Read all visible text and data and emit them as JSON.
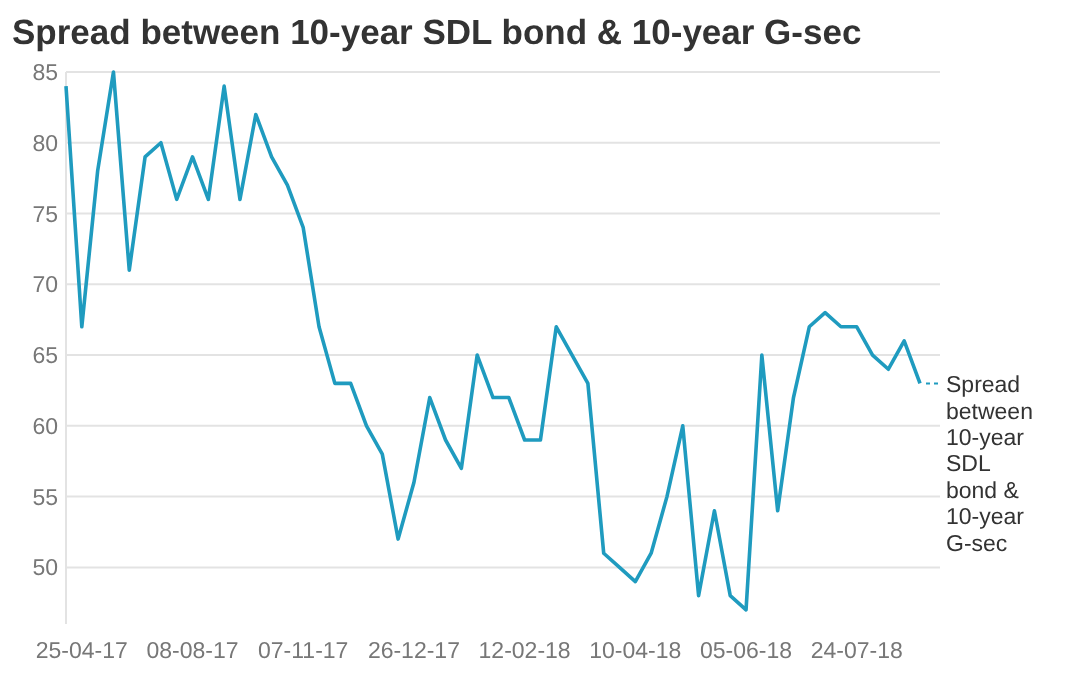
{
  "chart_data": {
    "type": "line",
    "title": "Spread between 10-year SDL bond & 10-year G-sec",
    "categories": [
      null,
      "25-04-17",
      null,
      null,
      null,
      null,
      null,
      null,
      "08-08-17",
      null,
      null,
      null,
      null,
      null,
      null,
      "07-11-17",
      null,
      null,
      null,
      null,
      null,
      null,
      "26-12-17",
      null,
      null,
      null,
      null,
      null,
      null,
      "12-02-18",
      null,
      null,
      null,
      null,
      null,
      null,
      "10-04-18",
      null,
      null,
      null,
      null,
      null,
      null,
      "05-06-18",
      null,
      null,
      null,
      null,
      null,
      null,
      "24-07-18",
      null,
      null,
      null,
      null
    ],
    "series": [
      {
        "name": "Spread between 10-year SDL bond & 10-year G-sec",
        "color": "#1f9bbf",
        "values": [
          84,
          67,
          78,
          85,
          71,
          79,
          80,
          76,
          79,
          76,
          84,
          76,
          82,
          79,
          77,
          74,
          67,
          63,
          63,
          60,
          58,
          52,
          56,
          62,
          59,
          57,
          65,
          62,
          62,
          59,
          59,
          67,
          65,
          63,
          51,
          50,
          49,
          51,
          55,
          60,
          48,
          54,
          48,
          47,
          65,
          54,
          62,
          67,
          68,
          67,
          67,
          65,
          64,
          66,
          63
        ]
      }
    ],
    "ylim": [
      46,
      85
    ],
    "yticks": [
      50,
      55,
      60,
      65,
      70,
      75,
      80,
      85
    ],
    "grid": "y",
    "marker": "none",
    "line_style": "solid"
  }
}
